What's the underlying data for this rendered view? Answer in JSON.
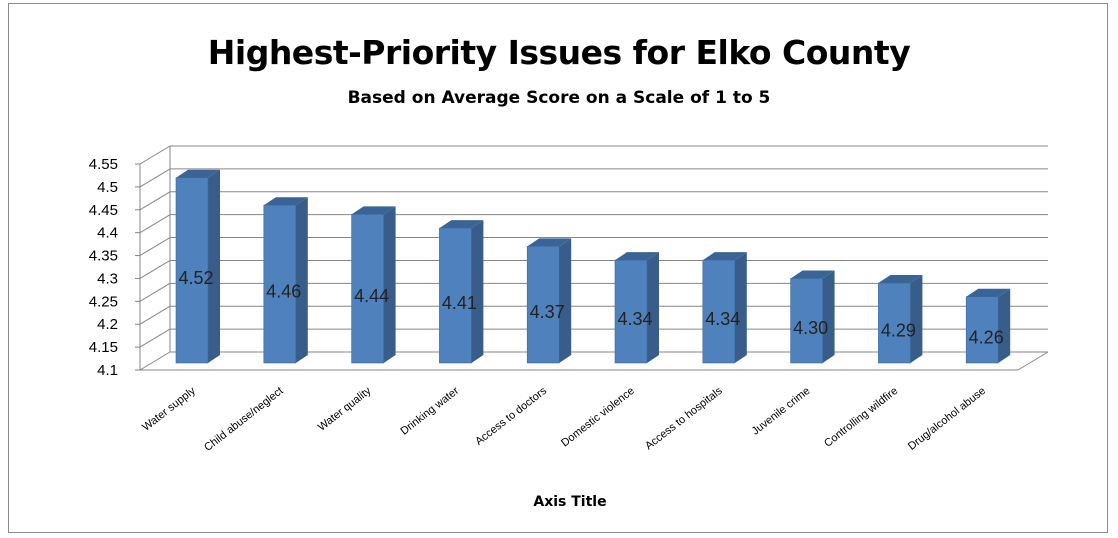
{
  "chart_data": {
    "type": "bar",
    "title": "Highest-Priority Issues for Elko County",
    "subtitle": "Based on Average Score on a Scale of 1 to 5",
    "xlabel": "Axis Title",
    "ylabel": "",
    "ylim": [
      4.1,
      4.55
    ],
    "yticks": [
      "4.1",
      "4.15",
      "4.2",
      "4.25",
      "4.3",
      "4.35",
      "4.4",
      "4.45",
      "4.5",
      "4.55"
    ],
    "categories": [
      "Water supply",
      "Child abuse/neglect",
      "Water quality",
      "Drinking water",
      "Access to doctors",
      "Domestic violence",
      "Access to hospitals",
      "Juvenile crime",
      "Controlling wildfire",
      "Drug/alcohol abuse"
    ],
    "values": [
      4.52,
      4.46,
      4.44,
      4.41,
      4.37,
      4.34,
      4.34,
      4.3,
      4.29,
      4.26
    ],
    "data_labels": [
      "4.52",
      "4.46",
      "4.44",
      "4.41",
      "4.37",
      "4.34",
      "4.34",
      "4.30",
      "4.29",
      "4.26"
    ],
    "grid": true,
    "legend": "none",
    "bar_color": "#4f81bd",
    "bar_side_color": "#385d8a",
    "bar_top_color": "#3a6496"
  }
}
